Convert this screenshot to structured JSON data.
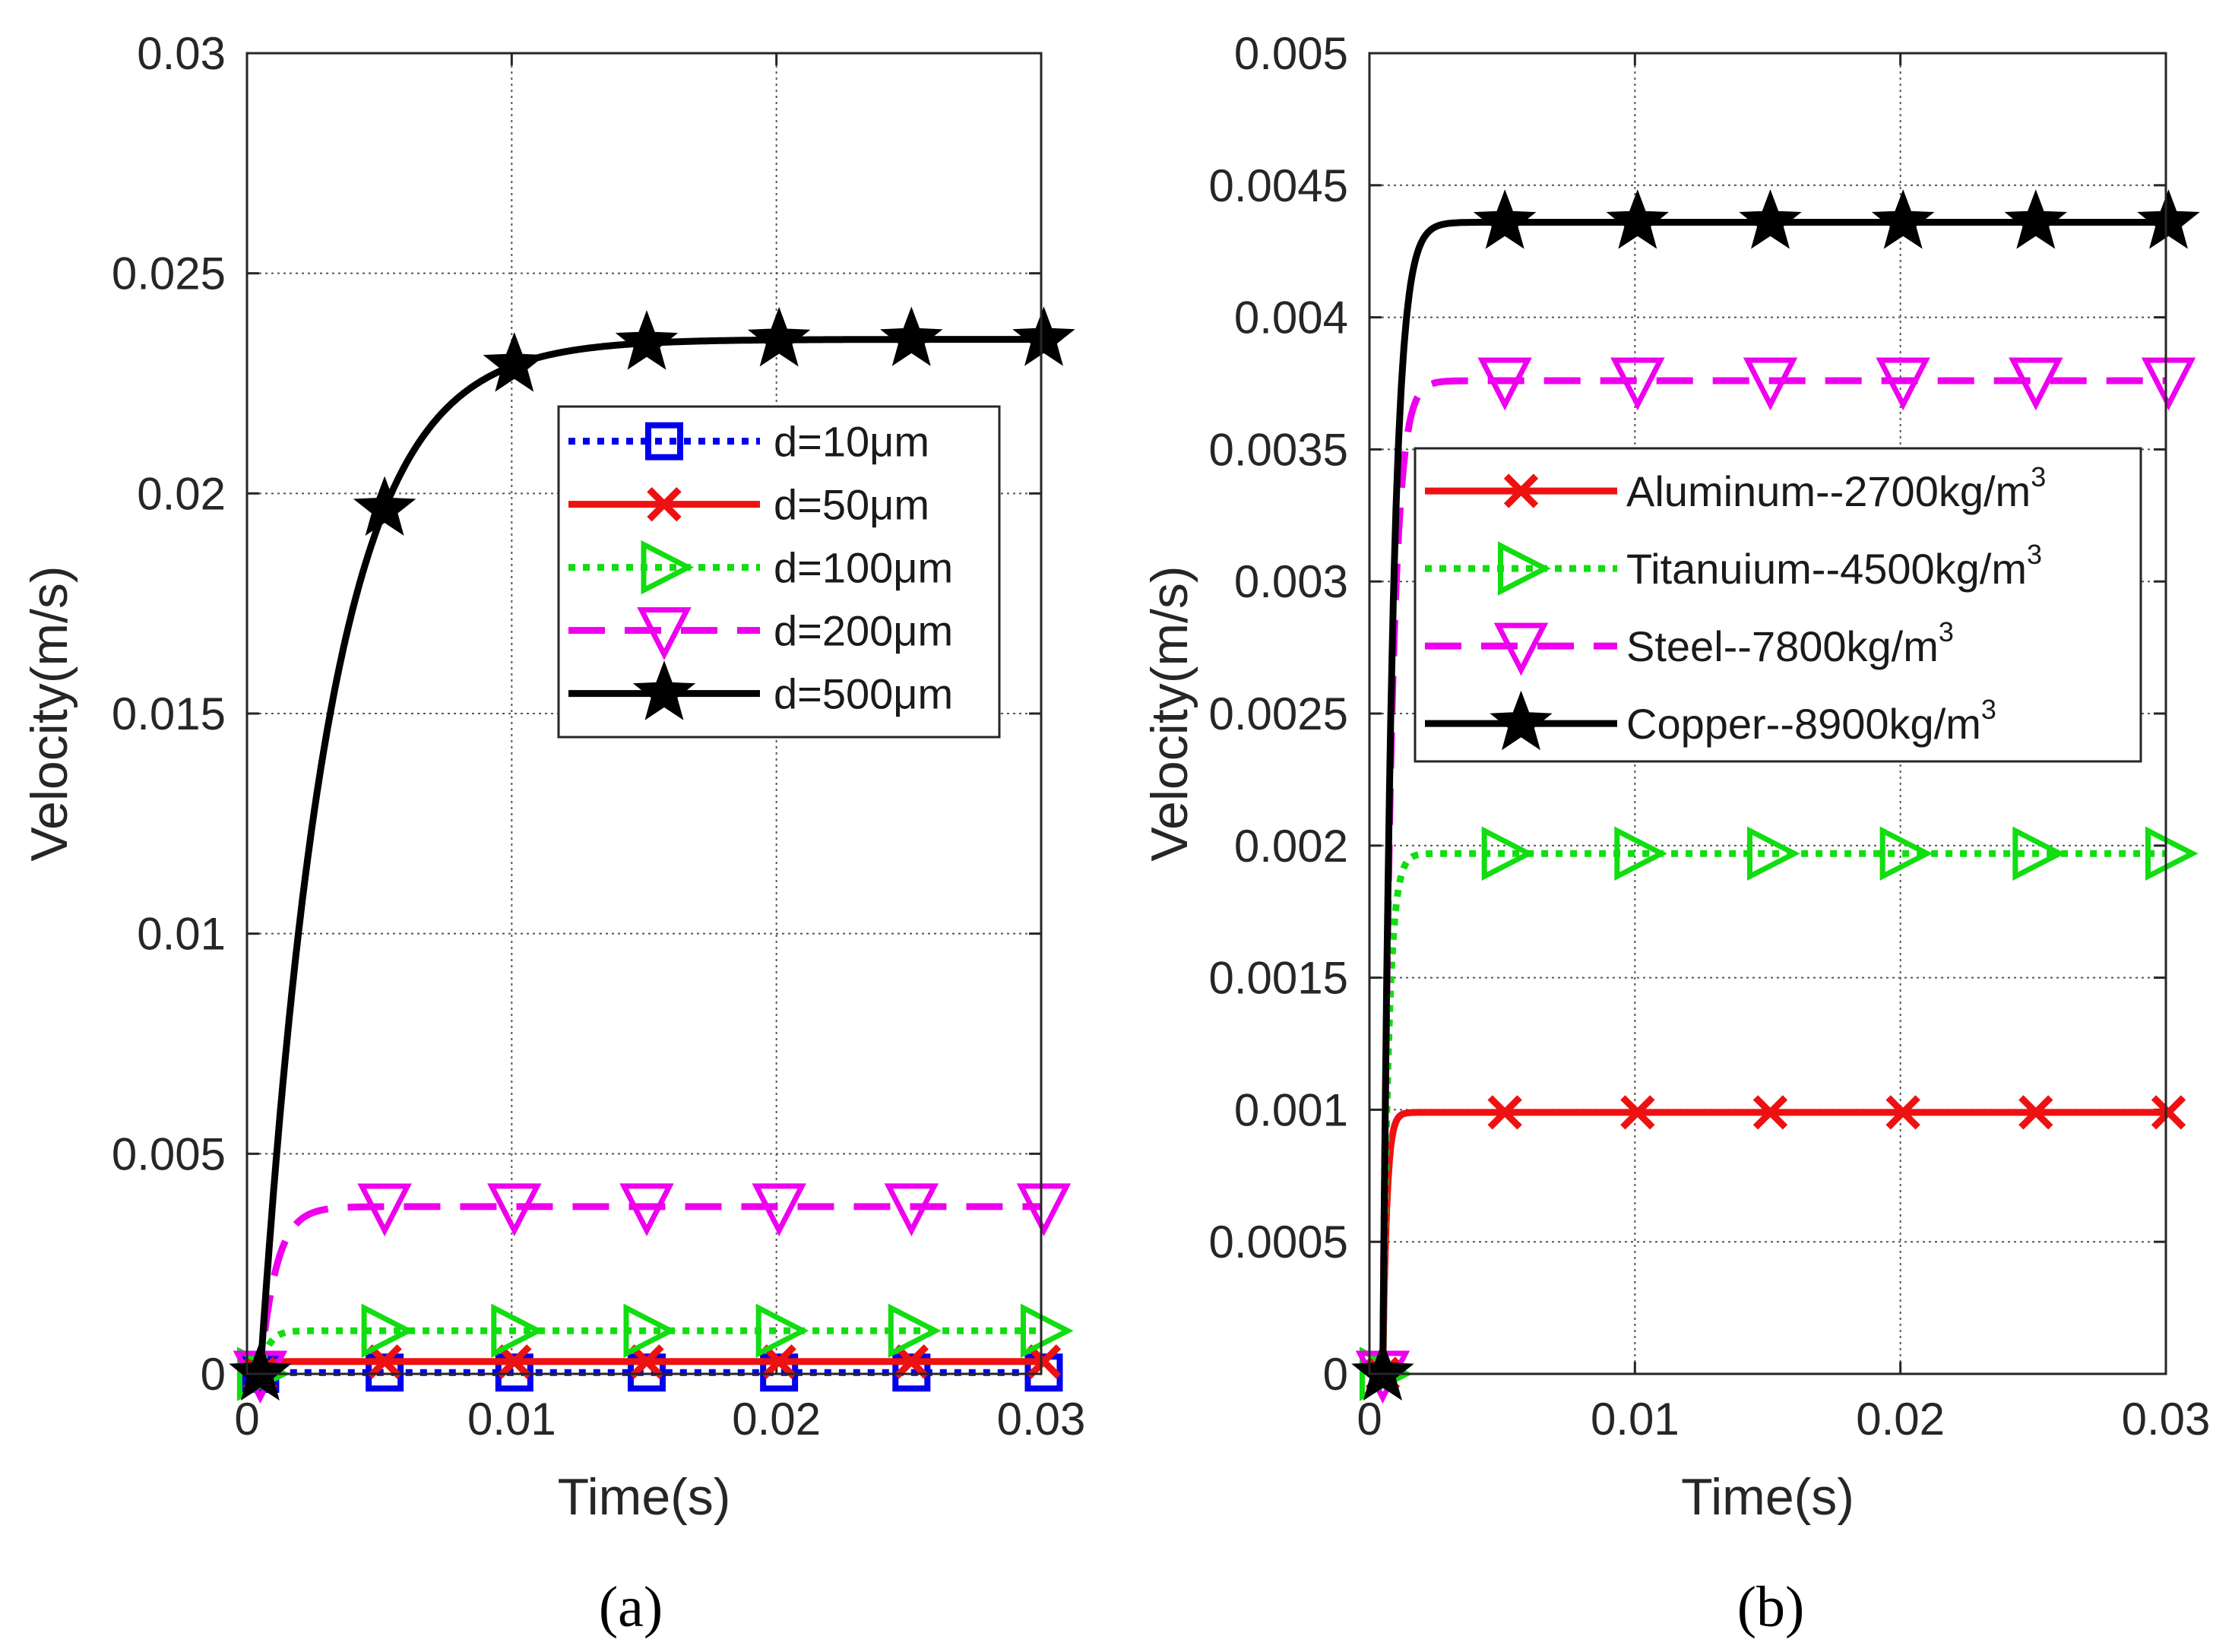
{
  "chart_data": [
    {
      "type": "line",
      "panel_label": "(a)",
      "xlabel": "Time(s)",
      "ylabel": "Velocity(m/s)",
      "xlim": [
        0,
        0.03
      ],
      "ylim": [
        0,
        0.03
      ],
      "xticks": [
        0,
        0.01,
        0.02,
        0.03
      ],
      "xtick_labels": [
        "0",
        "0.01",
        "0.02",
        "0.03"
      ],
      "yticks": [
        0,
        0.005,
        0.01,
        0.015,
        0.02,
        0.025,
        0.03
      ],
      "ytick_labels": [
        "0",
        "0.005",
        "0.01",
        "0.015",
        "0.02",
        "0.025",
        "0.03"
      ],
      "grid": true,
      "legend_position": "center-right",
      "series": [
        {
          "name": "d=10μm",
          "label": "d=10μm",
          "label_sup": "",
          "color": "#0000ee",
          "dash": "dotted",
          "marker": "square",
          "t0": 0.0005,
          "vmax": 3e-05,
          "tau": 0.0001
        },
        {
          "name": "d=50μm",
          "label": "d=50μm",
          "label_sup": "",
          "color": "#ee1111",
          "dash": "solid",
          "marker": "x",
          "t0": 0.0005,
          "vmax": 0.00028,
          "tau": 0.0002
        },
        {
          "name": "d=100μm",
          "label": "d=100μm",
          "label_sup": "",
          "color": "#11dd11",
          "dash": "dotted",
          "marker": "triangle-right",
          "t0": 0.0005,
          "vmax": 0.00098,
          "tau": 0.0003
        },
        {
          "name": "d=200μm",
          "label": "d=200μm",
          "label_sup": "",
          "color": "#ee00ee",
          "dash": "dashed",
          "marker": "triangle-down",
          "t0": 0.0005,
          "vmax": 0.0038,
          "tau": 0.0006
        },
        {
          "name": "d=500μm",
          "label": "d=500μm",
          "label_sup": "",
          "color": "#000000",
          "dash": "solid",
          "marker": "star",
          "t0": 0.0005,
          "vmax": 0.0235,
          "tau": 0.0026
        }
      ],
      "marker_x": [
        0.0005,
        0.0052,
        0.0101,
        0.0151,
        0.0201,
        0.0251,
        0.0301
      ]
    },
    {
      "type": "line",
      "panel_label": "(b)",
      "xlabel": "Time(s)",
      "ylabel": "Velocity(m/s)",
      "xlim": [
        0,
        0.03
      ],
      "ylim": [
        0,
        0.005
      ],
      "xticks": [
        0,
        0.01,
        0.02,
        0.03
      ],
      "xtick_labels": [
        "0",
        "0.01",
        "0.02",
        "0.03"
      ],
      "yticks": [
        0,
        0.0005,
        0.001,
        0.0015,
        0.002,
        0.0025,
        0.003,
        0.0035,
        0.004,
        0.0045,
        0.005
      ],
      "ytick_labels": [
        "0",
        "0.0005",
        "0.001",
        "0.0015",
        "0.002",
        "0.0025",
        "0.003",
        "0.0035",
        "0.004",
        "0.0045",
        "0.005"
      ],
      "grid": true,
      "legend_position": "center",
      "series": [
        {
          "name": "Aluminum--2700kg/m3",
          "label": "Aluminum--2700kg/m",
          "label_sup": "3",
          "color": "#ee1111",
          "dash": "solid",
          "marker": "x",
          "t0": 0.0005,
          "vmax": 0.00099,
          "tau": 0.00015
        },
        {
          "name": "Titanuium--4500kg/m3",
          "label": "Titanuium--4500kg/m",
          "label_sup": "3",
          "color": "#11dd11",
          "dash": "dotted",
          "marker": "triangle-right",
          "t0": 0.0005,
          "vmax": 0.00197,
          "tau": 0.00022
        },
        {
          "name": "Steel--7800kg/m3",
          "label": "Steel--7800kg/m",
          "label_sup": "3",
          "color": "#ee00ee",
          "dash": "dashed",
          "marker": "triangle-down",
          "t0": 0.0005,
          "vmax": 0.00376,
          "tau": 0.00032
        },
        {
          "name": "Copper--8900kg/m3",
          "label": "Copper--8900kg/m",
          "label_sup": "3",
          "color": "#000000",
          "dash": "solid",
          "marker": "star",
          "t0": 0.0005,
          "vmax": 0.00436,
          "tau": 0.00036
        }
      ],
      "marker_x": [
        0.0005,
        0.0051,
        0.0101,
        0.0151,
        0.0201,
        0.0251,
        0.0301
      ]
    }
  ]
}
